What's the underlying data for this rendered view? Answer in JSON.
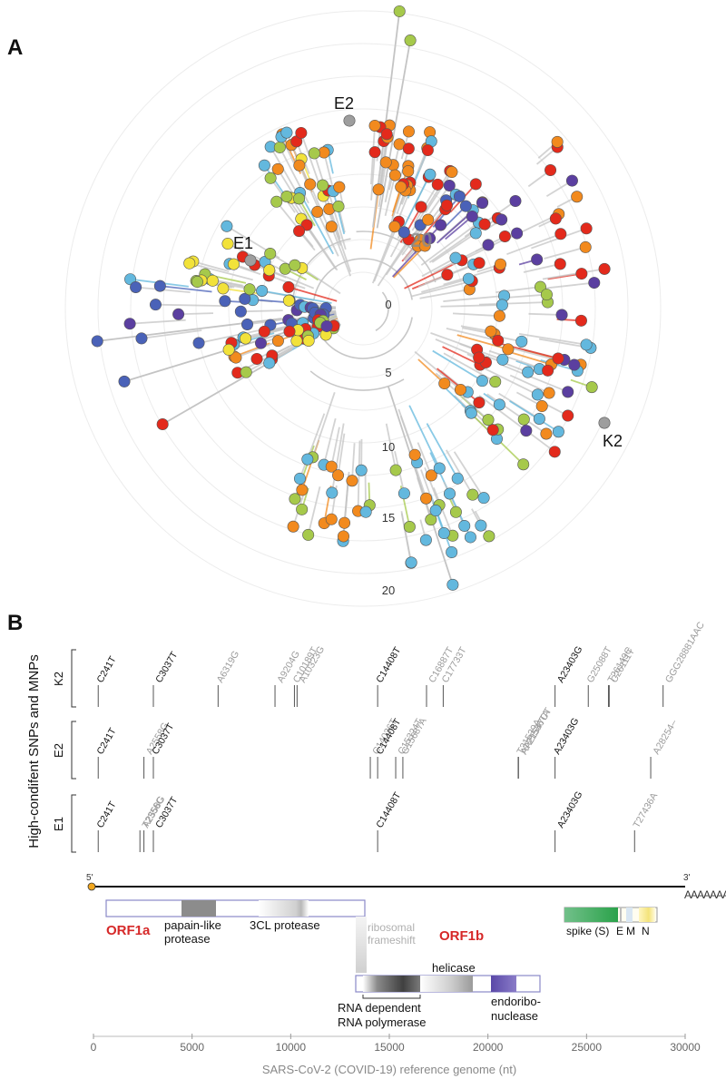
{
  "panel_a": {
    "letter": "A",
    "radial_ticks": [
      "0",
      "5",
      "10",
      "15",
      "20"
    ],
    "inner_label": "20",
    "node_labels": [
      "E2",
      "E1",
      "K2"
    ],
    "palette": [
      "#e32a1c",
      "#f28a1e",
      "#a6c94b",
      "#63b8de",
      "#4a62b8",
      "#5b3fa0",
      "#f2e23a",
      "#3bb0b0"
    ],
    "root_color": "#9e9e9e"
  },
  "panel_b": {
    "letter": "B",
    "ylabel": "High-condifent SNPs and MNPs",
    "samples": [
      {
        "name": "K2",
        "mutations": [
          {
            "label": "C241T",
            "pos": 241,
            "highlight": true
          },
          {
            "label": "C3037T",
            "pos": 3037,
            "highlight": true
          },
          {
            "label": "A6319G",
            "pos": 6319,
            "highlight": false
          },
          {
            "label": "A9204G",
            "pos": 9204,
            "highlight": false
          },
          {
            "label": "C10189T",
            "pos": 10189,
            "highlight": false
          },
          {
            "label": "A10323G",
            "pos": 10323,
            "highlight": false
          },
          {
            "label": "C14408T",
            "pos": 14408,
            "highlight": true
          },
          {
            "label": "C16887T",
            "pos": 16887,
            "highlight": false
          },
          {
            "label": "C17733T",
            "pos": 17733,
            "highlight": false
          },
          {
            "label": "A23403G",
            "pos": 23403,
            "highlight": true
          },
          {
            "label": "G25088T",
            "pos": 25088,
            "highlight": false
          },
          {
            "label": "C26111T",
            "pos": 26111,
            "highlight": false
          },
          {
            "label": "T26149C",
            "pos": 26149,
            "highlight": false
          },
          {
            "label": "GGG28881AAC",
            "pos": 28881,
            "highlight": false
          }
        ]
      },
      {
        "name": "E2",
        "mutations": [
          {
            "label": "C241T",
            "pos": 241,
            "highlight": true
          },
          {
            "label": "A2558G",
            "pos": 2558,
            "highlight": false
          },
          {
            "label": "C3037T",
            "pos": 3037,
            "highlight": true
          },
          {
            "label": "C14036T",
            "pos": 14036,
            "highlight": false
          },
          {
            "label": "C14408T",
            "pos": 14408,
            "highlight": true
          },
          {
            "label": "C15324T",
            "pos": 15324,
            "highlight": false
          },
          {
            "label": "G15687A",
            "pos": 15687,
            "highlight": false
          },
          {
            "label": "AT21536TA",
            "pos": 21536,
            "highlight": false
          },
          {
            "label": "T21539A",
            "pos": 21539,
            "highlight": false
          },
          {
            "label": "AA21547CT",
            "pos": 21547,
            "highlight": false
          },
          {
            "label": "A23403G",
            "pos": 23403,
            "highlight": true
          },
          {
            "label": "A28254–",
            "pos": 28254,
            "highlight": false
          }
        ]
      },
      {
        "name": "E1",
        "mutations": [
          {
            "label": "C241T",
            "pos": 241,
            "highlight": true
          },
          {
            "label": "T2356C",
            "pos": 2356,
            "highlight": false
          },
          {
            "label": "A2558G",
            "pos": 2558,
            "highlight": false
          },
          {
            "label": "C3037T",
            "pos": 3037,
            "highlight": true
          },
          {
            "label": "C14408T",
            "pos": 14408,
            "highlight": true
          },
          {
            "label": "A23403G",
            "pos": 23403,
            "highlight": true
          },
          {
            "label": "T27436A",
            "pos": 27436,
            "highlight": false
          }
        ]
      }
    ],
    "genome": {
      "five_prime": "5'",
      "three_prime": "3'",
      "polyA": "AAAAAAAA",
      "orf1a": "ORF1a",
      "orf1b": "ORF1b",
      "papain": [
        "papain-like",
        "protease"
      ],
      "cl3": "3CL protease",
      "frameshift": [
        "ribosomal",
        "frameshift"
      ],
      "helicase": "helicase",
      "rdrp": [
        "RNA dependent",
        "RNA polymerase"
      ],
      "endo": [
        "endoribo-",
        "nuclease"
      ],
      "spike": "spike (S)",
      "e": "E",
      "m": "M",
      "n": "N",
      "orf_color": "#d62828"
    },
    "axis": {
      "xlabel": "SARS-CoV-2 (COVID-19) reference genome (nt)",
      "ticks": [
        0,
        5000,
        10000,
        15000,
        20000,
        25000,
        30000
      ]
    }
  }
}
